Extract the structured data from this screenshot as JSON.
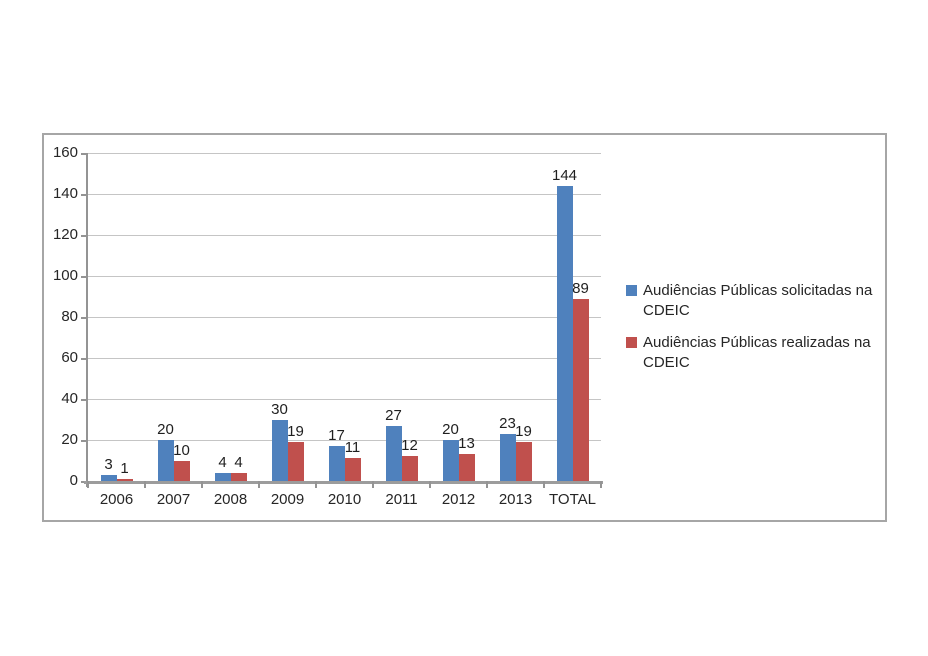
{
  "chart_data": {
    "type": "bar",
    "title": "",
    "xlabel": "",
    "ylabel": "",
    "categories": [
      "2006",
      "2007",
      "2008",
      "2009",
      "2010",
      "2011",
      "2012",
      "2013",
      "TOTAL"
    ],
    "series": [
      {
        "name": "Audiências Públicas solicitadas na CDEIC",
        "color": "#4F81BD",
        "values": [
          3,
          20,
          4,
          30,
          17,
          27,
          20,
          23,
          144
        ]
      },
      {
        "name": "Audiências Públicas realizadas na CDEIC",
        "color": "#C0504D",
        "values": [
          1,
          10,
          4,
          19,
          11,
          12,
          13,
          19,
          89
        ]
      }
    ],
    "ylim": [
      0,
      160
    ],
    "yticks": [
      0,
      20,
      40,
      60,
      80,
      100,
      120,
      140,
      160
    ],
    "grid": true,
    "data_labels": "outside-end",
    "legend_position": "right",
    "colors": {
      "grid": "#C5C5C5",
      "axis": "#949494",
      "text": "#262626",
      "frame_border": "#A6A6A6"
    }
  }
}
